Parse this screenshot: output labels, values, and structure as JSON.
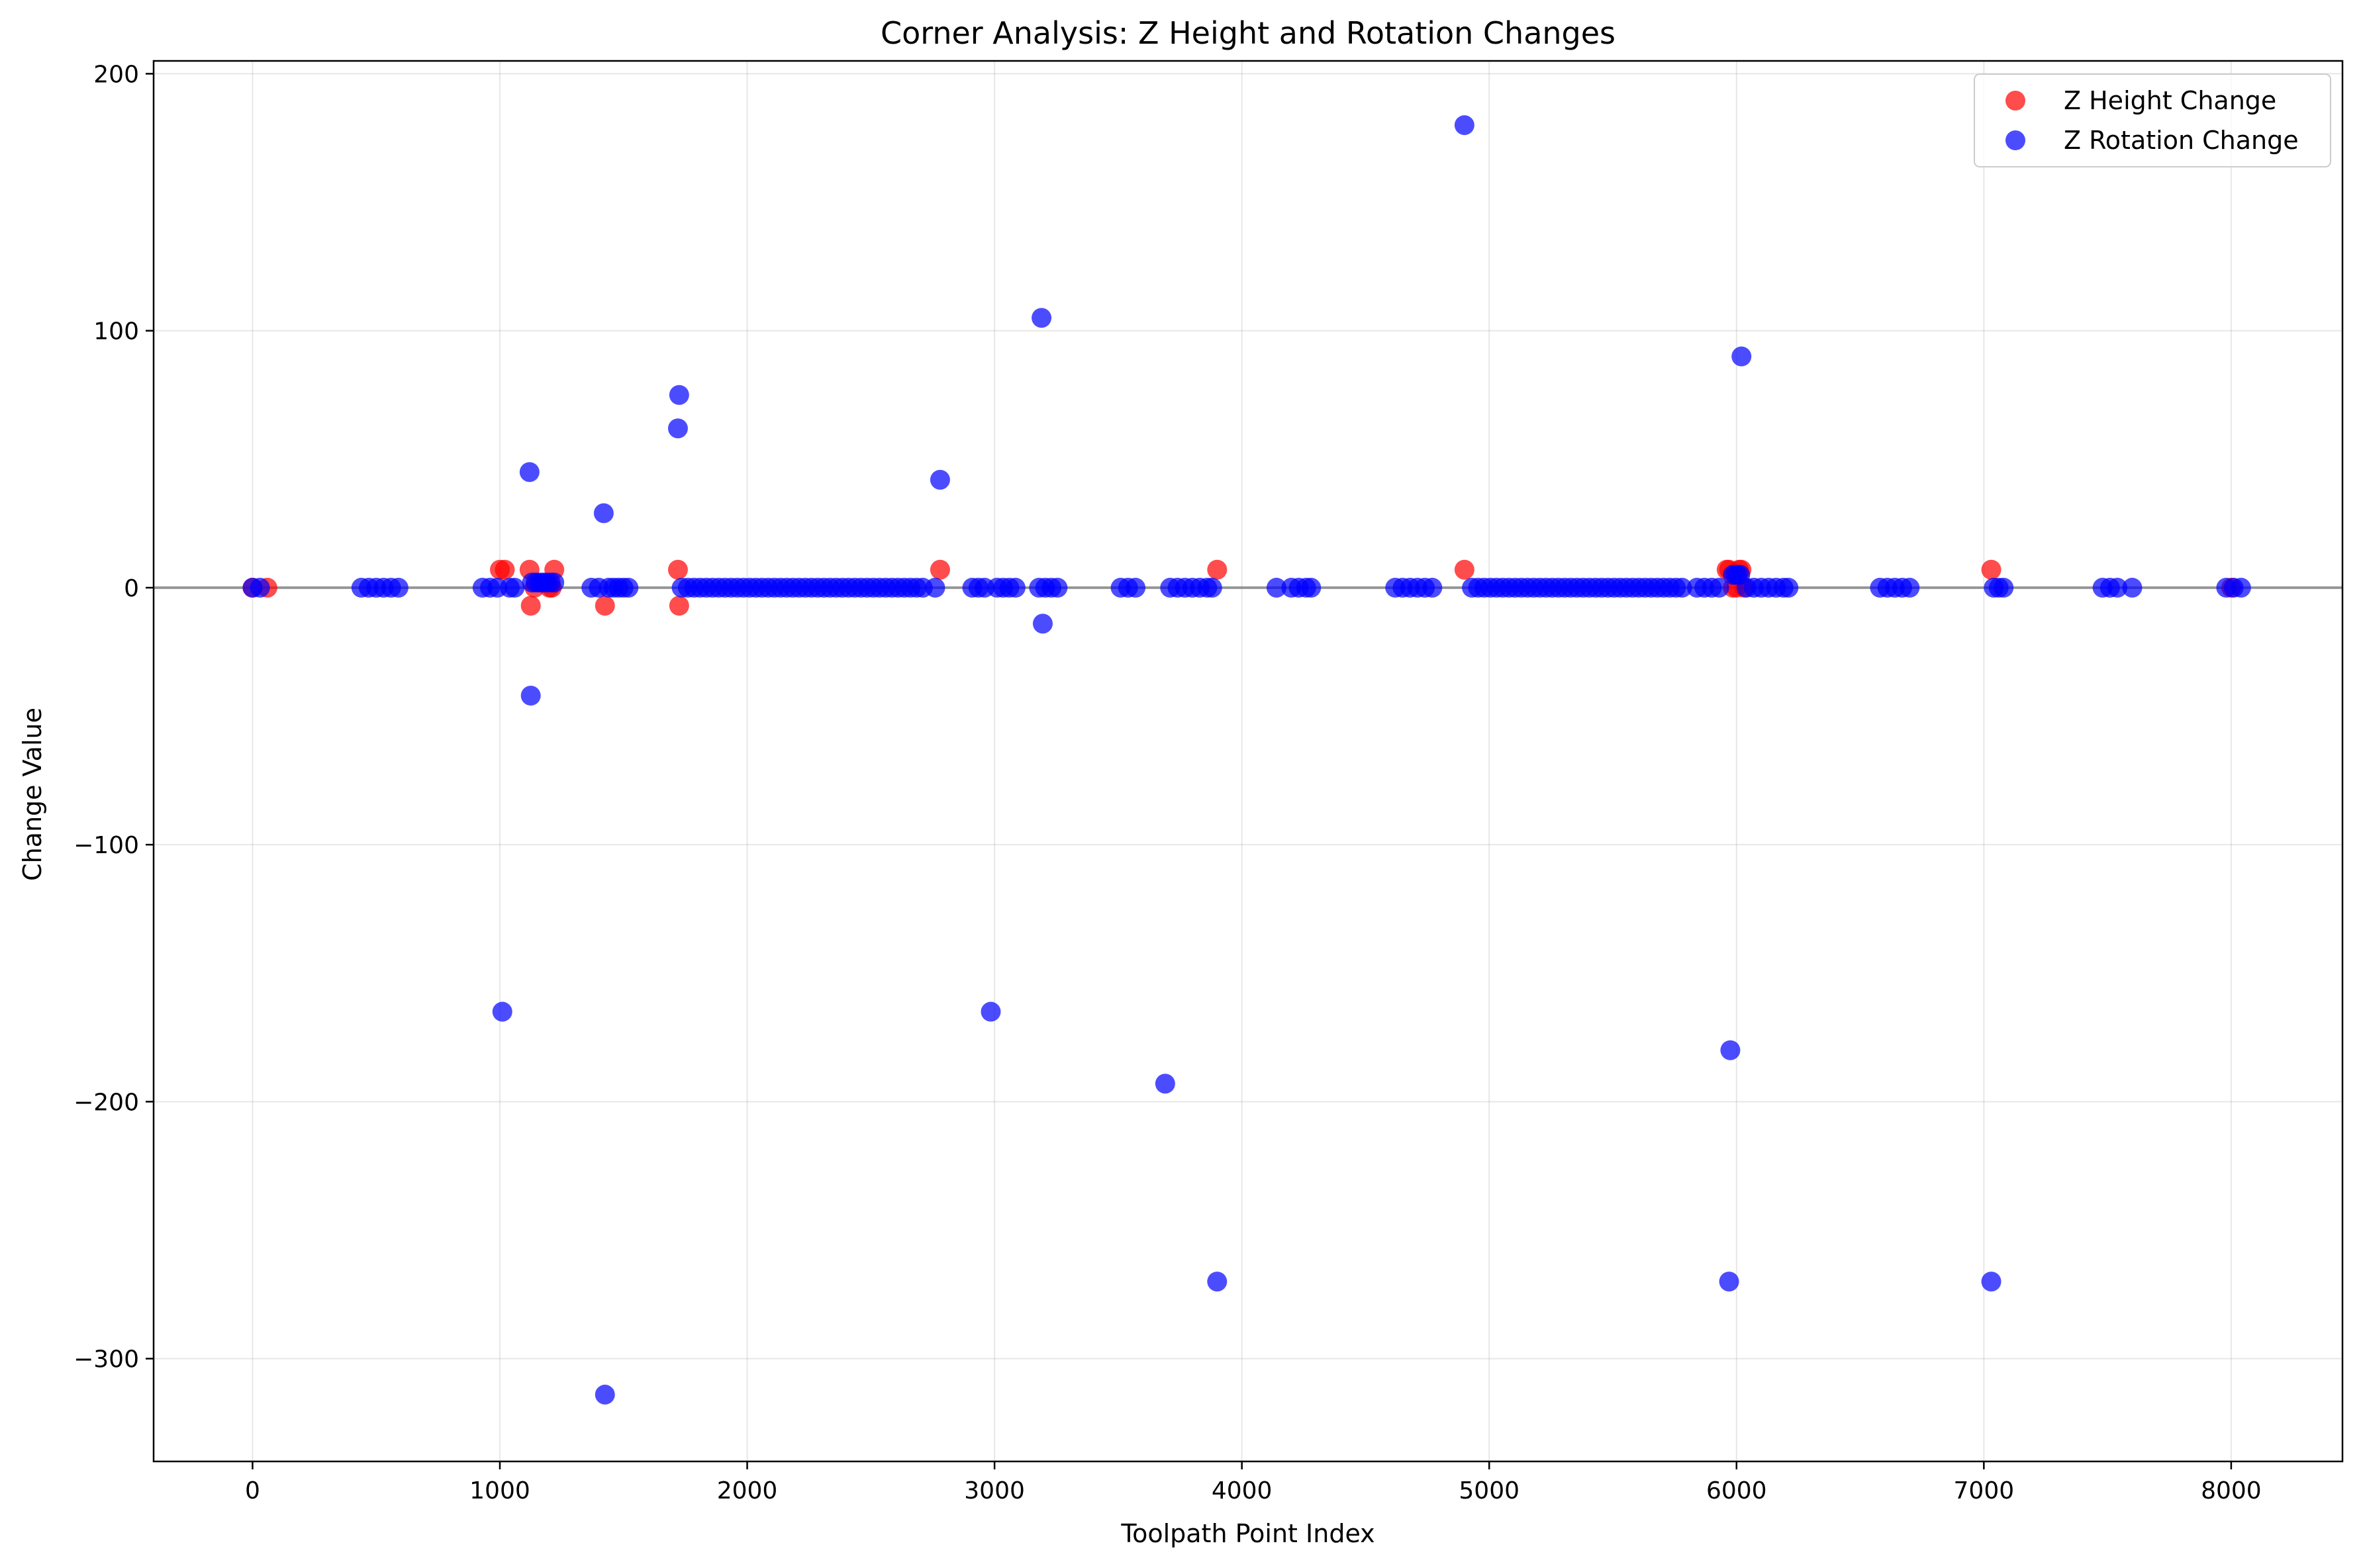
{
  "chart_data": {
    "type": "scatter",
    "title": "Corner Analysis: Z Height and Rotation Changes",
    "xlabel": "Toolpath Point Index",
    "ylabel": "Change Value",
    "xlim": [
      -400,
      8450
    ],
    "ylim": [
      -340,
      205
    ],
    "xticks": [
      0,
      1000,
      2000,
      3000,
      4000,
      5000,
      6000,
      7000,
      8000
    ],
    "yticks": [
      -300,
      -200,
      -100,
      0,
      100,
      200
    ],
    "xtick_labels": [
      "0",
      "1000",
      "2000",
      "3000",
      "4000",
      "5000",
      "6000",
      "7000",
      "8000"
    ],
    "ytick_labels": [
      "−300",
      "−200",
      "−100",
      "0",
      "100",
      "200"
    ],
    "grid": true,
    "reference_line_y": 0,
    "legend_position": "top-right",
    "series": [
      {
        "name": "Z Height Change",
        "color": "#ff0000",
        "points": [
          [
            0,
            0
          ],
          [
            60,
            0
          ],
          [
            1000,
            7
          ],
          [
            1020,
            7
          ],
          [
            1120,
            7
          ],
          [
            1125,
            -7
          ],
          [
            1140,
            0
          ],
          [
            1200,
            0
          ],
          [
            1210,
            0
          ],
          [
            1220,
            7
          ],
          [
            1425,
            -7
          ],
          [
            1720,
            7
          ],
          [
            1725,
            -7
          ],
          [
            2780,
            7
          ],
          [
            3900,
            7
          ],
          [
            4900,
            7
          ],
          [
            5960,
            7
          ],
          [
            5970,
            7
          ],
          [
            5985,
            0
          ],
          [
            6000,
            0
          ],
          [
            6010,
            7
          ],
          [
            6020,
            7
          ],
          [
            6030,
            0
          ],
          [
            7030,
            7
          ],
          [
            8000,
            0
          ]
        ]
      },
      {
        "name": "Z Rotation Change",
        "color": "#0000ff",
        "points": [
          [
            0,
            0
          ],
          [
            30,
            0
          ],
          [
            440,
            0
          ],
          [
            470,
            0
          ],
          [
            500,
            0
          ],
          [
            530,
            0
          ],
          [
            560,
            0
          ],
          [
            590,
            0
          ],
          [
            930,
            0
          ],
          [
            960,
            0
          ],
          [
            990,
            0
          ],
          [
            1010,
            -165
          ],
          [
            1040,
            0
          ],
          [
            1060,
            0
          ],
          [
            1120,
            45
          ],
          [
            1125,
            -42
          ],
          [
            1130,
            2
          ],
          [
            1145,
            2
          ],
          [
            1160,
            2
          ],
          [
            1175,
            2
          ],
          [
            1190,
            2
          ],
          [
            1205,
            2
          ],
          [
            1220,
            2
          ],
          [
            1370,
            0
          ],
          [
            1400,
            0
          ],
          [
            1420,
            29
          ],
          [
            1425,
            -314
          ],
          [
            1440,
            0
          ],
          [
            1460,
            0
          ],
          [
            1480,
            0
          ],
          [
            1500,
            0
          ],
          [
            1520,
            0
          ],
          [
            1720,
            62
          ],
          [
            1725,
            75
          ],
          [
            1735,
            0
          ],
          [
            1760,
            0
          ],
          [
            1785,
            0
          ],
          [
            1810,
            0
          ],
          [
            1835,
            0
          ],
          [
            1860,
            0
          ],
          [
            1885,
            0
          ],
          [
            1910,
            0
          ],
          [
            1935,
            0
          ],
          [
            1960,
            0
          ],
          [
            1985,
            0
          ],
          [
            2010,
            0
          ],
          [
            2035,
            0
          ],
          [
            2060,
            0
          ],
          [
            2085,
            0
          ],
          [
            2110,
            0
          ],
          [
            2135,
            0
          ],
          [
            2160,
            0
          ],
          [
            2185,
            0
          ],
          [
            2210,
            0
          ],
          [
            2235,
            0
          ],
          [
            2260,
            0
          ],
          [
            2285,
            0
          ],
          [
            2310,
            0
          ],
          [
            2335,
            0
          ],
          [
            2360,
            0
          ],
          [
            2385,
            0
          ],
          [
            2410,
            0
          ],
          [
            2435,
            0
          ],
          [
            2460,
            0
          ],
          [
            2485,
            0
          ],
          [
            2510,
            0
          ],
          [
            2535,
            0
          ],
          [
            2560,
            0
          ],
          [
            2585,
            0
          ],
          [
            2610,
            0
          ],
          [
            2635,
            0
          ],
          [
            2660,
            0
          ],
          [
            2685,
            0
          ],
          [
            2710,
            0
          ],
          [
            2760,
            0
          ],
          [
            2780,
            42
          ],
          [
            2910,
            0
          ],
          [
            2935,
            0
          ],
          [
            2960,
            0
          ],
          [
            2985,
            -165
          ],
          [
            3010,
            0
          ],
          [
            3035,
            0
          ],
          [
            3060,
            0
          ],
          [
            3085,
            0
          ],
          [
            3180,
            0
          ],
          [
            3190,
            105
          ],
          [
            3195,
            -14
          ],
          [
            3205,
            0
          ],
          [
            3230,
            0
          ],
          [
            3255,
            0
          ],
          [
            3510,
            0
          ],
          [
            3540,
            0
          ],
          [
            3570,
            0
          ],
          [
            3690,
            -193
          ],
          [
            3710,
            0
          ],
          [
            3740,
            0
          ],
          [
            3770,
            0
          ],
          [
            3800,
            0
          ],
          [
            3830,
            0
          ],
          [
            3860,
            0
          ],
          [
            3880,
            0
          ],
          [
            3900,
            -270
          ],
          [
            4140,
            0
          ],
          [
            4200,
            0
          ],
          [
            4230,
            0
          ],
          [
            4260,
            0
          ],
          [
            4280,
            0
          ],
          [
            4620,
            0
          ],
          [
            4650,
            0
          ],
          [
            4680,
            0
          ],
          [
            4710,
            0
          ],
          [
            4740,
            0
          ],
          [
            4770,
            0
          ],
          [
            4900,
            180
          ],
          [
            4930,
            0
          ],
          [
            4955,
            0
          ],
          [
            4980,
            0
          ],
          [
            5005,
            0
          ],
          [
            5030,
            0
          ],
          [
            5055,
            0
          ],
          [
            5080,
            0
          ],
          [
            5105,
            0
          ],
          [
            5130,
            0
          ],
          [
            5155,
            0
          ],
          [
            5180,
            0
          ],
          [
            5205,
            0
          ],
          [
            5230,
            0
          ],
          [
            5255,
            0
          ],
          [
            5280,
            0
          ],
          [
            5305,
            0
          ],
          [
            5330,
            0
          ],
          [
            5355,
            0
          ],
          [
            5380,
            0
          ],
          [
            5405,
            0
          ],
          [
            5430,
            0
          ],
          [
            5455,
            0
          ],
          [
            5480,
            0
          ],
          [
            5505,
            0
          ],
          [
            5530,
            0
          ],
          [
            5555,
            0
          ],
          [
            5580,
            0
          ],
          [
            5605,
            0
          ],
          [
            5630,
            0
          ],
          [
            5655,
            0
          ],
          [
            5680,
            0
          ],
          [
            5705,
            0
          ],
          [
            5730,
            0
          ],
          [
            5755,
            0
          ],
          [
            5780,
            0
          ],
          [
            5840,
            0
          ],
          [
            5870,
            0
          ],
          [
            5900,
            0
          ],
          [
            5930,
            0
          ],
          [
            5970,
            -270
          ],
          [
            5975,
            -180
          ],
          [
            5985,
            5
          ],
          [
            5995,
            5
          ],
          [
            6005,
            5
          ],
          [
            6015,
            5
          ],
          [
            6020,
            90
          ],
          [
            6040,
            0
          ],
          [
            6070,
            0
          ],
          [
            6100,
            0
          ],
          [
            6130,
            0
          ],
          [
            6160,
            0
          ],
          [
            6190,
            0
          ],
          [
            6210,
            0
          ],
          [
            6580,
            0
          ],
          [
            6610,
            0
          ],
          [
            6640,
            0
          ],
          [
            6670,
            0
          ],
          [
            6700,
            0
          ],
          [
            7030,
            -270
          ],
          [
            7040,
            0
          ],
          [
            7060,
            0
          ],
          [
            7080,
            0
          ],
          [
            7480,
            0
          ],
          [
            7510,
            0
          ],
          [
            7540,
            0
          ],
          [
            7600,
            0
          ],
          [
            7980,
            0
          ],
          [
            8010,
            0
          ],
          [
            8040,
            0
          ]
        ]
      }
    ]
  }
}
